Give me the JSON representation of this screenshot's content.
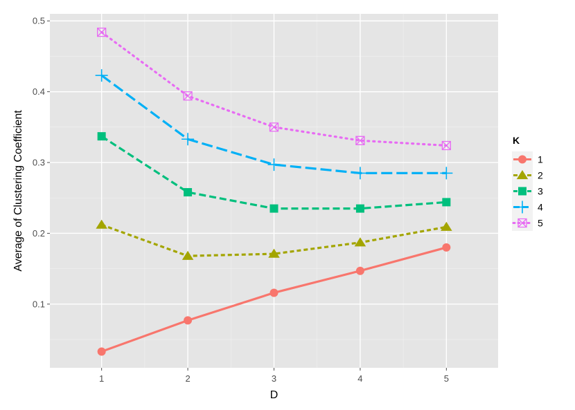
{
  "chart_data": {
    "type": "line",
    "xlabel": "D",
    "ylabel": "Average of Clustering Coefficient",
    "x": [
      1,
      2,
      3,
      4,
      5
    ],
    "x_ticks": [
      "1",
      "2",
      "3",
      "4",
      "5"
    ],
    "xlim": [
      0.4,
      5.6
    ],
    "ylim": [
      0.01,
      0.51
    ],
    "y_ticks": [
      "0.1",
      "0.2",
      "0.3",
      "0.4",
      "0.5"
    ],
    "y_tick_values": [
      0.1,
      0.2,
      0.3,
      0.4,
      0.5
    ],
    "y_minor_values": [
      0.05,
      0.15,
      0.25,
      0.35,
      0.45
    ],
    "grid": true,
    "legend": {
      "title": "K",
      "position": "right"
    },
    "series": [
      {
        "name": "1",
        "color": "#F8766D",
        "dash": "solid",
        "marker": "circle",
        "values": [
          0.033,
          0.077,
          0.116,
          0.147,
          0.18
        ]
      },
      {
        "name": "2",
        "color": "#A3A500",
        "dash": "short-dash",
        "marker": "triangle",
        "values": [
          0.212,
          0.168,
          0.171,
          0.187,
          0.209
        ]
      },
      {
        "name": "3",
        "color": "#00BF7D",
        "dash": "dash",
        "marker": "square",
        "values": [
          0.337,
          0.258,
          0.235,
          0.235,
          0.244
        ]
      },
      {
        "name": "4",
        "color": "#00B0F6",
        "dash": "long-dash",
        "marker": "plus",
        "values": [
          0.423,
          0.333,
          0.297,
          0.285,
          0.285
        ]
      },
      {
        "name": "5",
        "color": "#E76BF3",
        "dash": "dotted",
        "marker": "boxed-x",
        "values": [
          0.484,
          0.394,
          0.35,
          0.331,
          0.324
        ]
      }
    ]
  }
}
